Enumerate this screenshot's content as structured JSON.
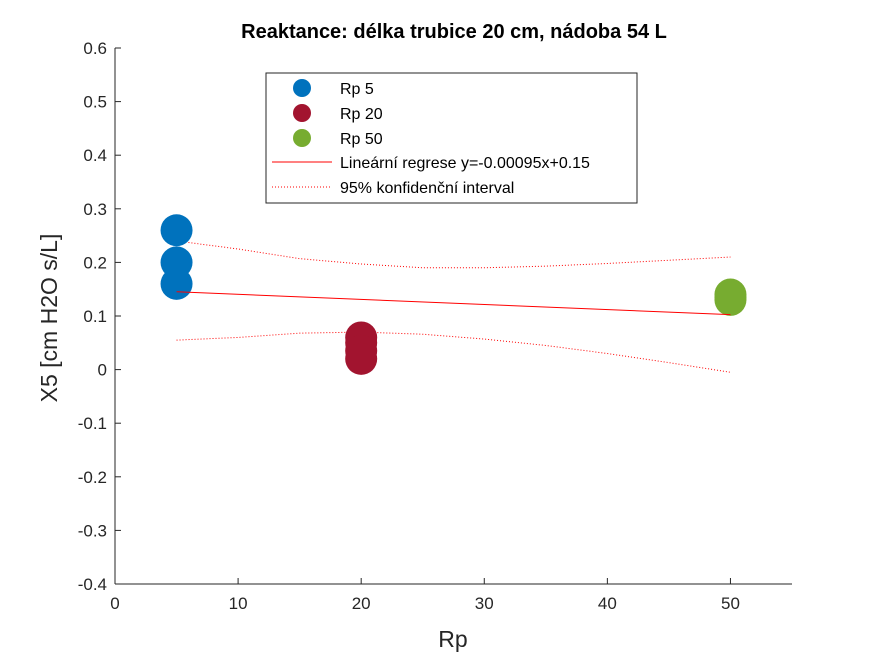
{
  "chart_data": {
    "type": "scatter",
    "title": "Reaktance: délka trubice 20 cm, nádoba 54 L",
    "xlabel": "Rp",
    "ylabel": "X5 [cm H2O s/L]",
    "xlim": [
      0,
      55
    ],
    "ylim": [
      -0.4,
      0.6
    ],
    "xticks": [
      "0",
      "10",
      "20",
      "30",
      "40",
      "50"
    ],
    "xtick_values": [
      0,
      10,
      20,
      30,
      40,
      50
    ],
    "yticks": [
      "-0.4",
      "-0.3",
      "-0.2",
      "-0.1",
      "0",
      "0.1",
      "0.2",
      "0.3",
      "0.4",
      "0.5",
      "0.6"
    ],
    "ytick_values": [
      -0.4,
      -0.3,
      -0.2,
      -0.1,
      0,
      0.1,
      0.2,
      0.3,
      0.4,
      0.5,
      0.6
    ],
    "grid": false,
    "legend_position": "top",
    "series": [
      {
        "name": "Rp 5",
        "color": "#0072BD",
        "x": [
          5,
          5,
          5
        ],
        "y": [
          0.26,
          0.2,
          0.16
        ]
      },
      {
        "name": "Rp 20",
        "color": "#A2142F",
        "x": [
          20,
          20,
          20,
          20
        ],
        "y": [
          0.06,
          0.05,
          0.035,
          0.02
        ]
      },
      {
        "name": "Rp 50",
        "color": "#77AC30",
        "x": [
          50,
          50,
          50
        ],
        "y": [
          0.14,
          0.135,
          0.13
        ]
      }
    ],
    "regression": {
      "name": "Lineární regrese y=-0.00095x+0.15",
      "color": "#FF0000",
      "slope": -0.00095,
      "intercept": 0.15,
      "x_range": [
        5,
        50
      ]
    },
    "confidence_interval": {
      "name": "95% konfidenční interval",
      "color": "#FF0000",
      "x": [
        5,
        10,
        15,
        20,
        25,
        30,
        35,
        40,
        45,
        50
      ],
      "upper": [
        0.24,
        0.225,
        0.207,
        0.197,
        0.19,
        0.19,
        0.193,
        0.198,
        0.204,
        0.21
      ],
      "lower": [
        0.055,
        0.06,
        0.068,
        0.07,
        0.066,
        0.057,
        0.045,
        0.03,
        0.013,
        -0.005
      ]
    }
  }
}
